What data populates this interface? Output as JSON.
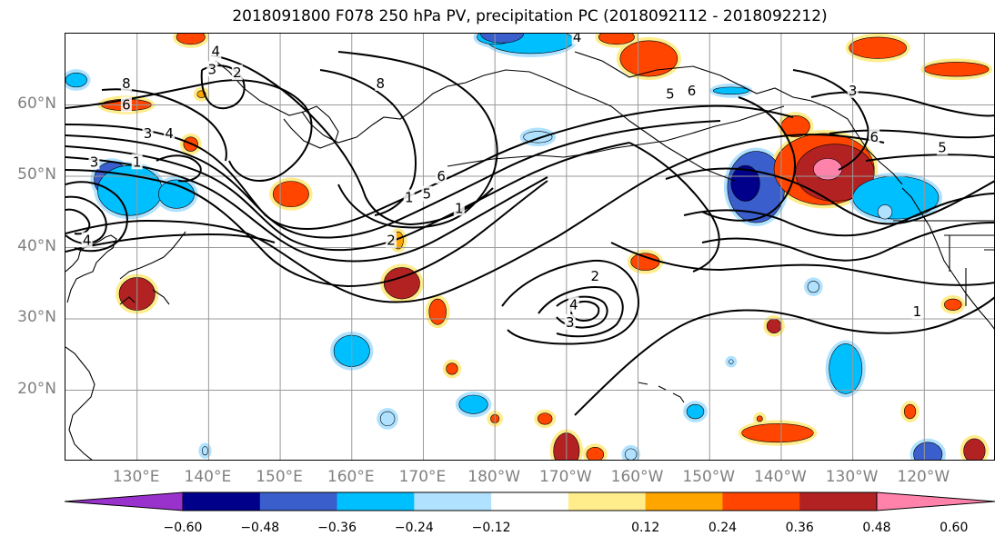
{
  "title": "2018091800 F078 250 hPa PV, precipitation PC (2018092112 - 2018092212)",
  "lat_labels": [
    "60°N",
    "50°N",
    "40°N",
    "30°N",
    "20°N"
  ],
  "lon_labels": [
    "130°E",
    "140°E",
    "150°E",
    "160°E",
    "170°E",
    "180°W",
    "170°W",
    "160°W",
    "150°W",
    "140°W",
    "130°W",
    "120°W"
  ],
  "colorbar": {
    "tick_labels": [
      "−0.60",
      "−0.48",
      "−0.36",
      "−0.24",
      "−0.12",
      "0.12",
      "0.24",
      "0.36",
      "0.48",
      "0.60"
    ],
    "colors": [
      "#9932cc",
      "#00008b",
      "#3a5fcd",
      "#00bfff",
      "#b0e2ff",
      "#ffffff",
      "#ffec8b",
      "#ffa500",
      "#ff4500",
      "#b22222",
      "#ff82ab"
    ]
  },
  "contour_labels": [
    {
      "text": "4",
      "lon": 141.0,
      "lat": 67.5
    },
    {
      "text": "3",
      "lon": 140.5,
      "lat": 65.0
    },
    {
      "text": "2",
      "lon": 144.0,
      "lat": 64.5
    },
    {
      "text": "8",
      "lon": 128.5,
      "lat": 63.0
    },
    {
      "text": "6",
      "lon": 128.5,
      "lat": 60.0
    },
    {
      "text": "3",
      "lon": 131.5,
      "lat": 56.0
    },
    {
      "text": "4",
      "lon": 134.5,
      "lat": 56.0
    },
    {
      "text": "3",
      "lon": 124.0,
      "lat": 52.0
    },
    {
      "text": "1",
      "lon": 130.0,
      "lat": 52.0
    },
    {
      "text": "4",
      "lon": 123.0,
      "lat": 41.0
    },
    {
      "text": "8",
      "lon": 164.0,
      "lat": 63.0
    },
    {
      "text": "6",
      "lon": 172.5,
      "lat": 50.0
    },
    {
      "text": "5",
      "lon": 170.5,
      "lat": 47.5
    },
    {
      "text": "1",
      "lon": 168.0,
      "lat": 47.0
    },
    {
      "text": "1",
      "lon": 175.0,
      "lat": 45.5
    },
    {
      "text": "2",
      "lon": 165.5,
      "lat": 41.0
    },
    {
      "text": "4",
      "lon": -168.5,
      "lat": 69.5
    },
    {
      "text": "2",
      "lon": -166.0,
      "lat": 36.0
    },
    {
      "text": "4",
      "lon": -169.0,
      "lat": 32.0
    },
    {
      "text": "3",
      "lon": -169.5,
      "lat": 29.5
    },
    {
      "text": "5",
      "lon": -155.5,
      "lat": 61.5
    },
    {
      "text": "6",
      "lon": -152.5,
      "lat": 62.0
    },
    {
      "text": "3",
      "lon": -130.0,
      "lat": 62.0
    },
    {
      "text": "6",
      "lon": -127.0,
      "lat": 55.5
    },
    {
      "text": "5",
      "lon": -117.5,
      "lat": 54.0
    },
    {
      "text": "1",
      "lon": -121.0,
      "lat": 31.0
    }
  ],
  "shading": [
    {
      "lon": 126.5,
      "lat": 49.5,
      "rx": 2.5,
      "ry": 2.5,
      "level": -0.48
    },
    {
      "lon": 129.0,
      "lat": 48.0,
      "rx": 4.5,
      "ry": 3.5,
      "level": -0.36
    },
    {
      "lon": 135.5,
      "lat": 47.5,
      "rx": 2.5,
      "ry": 2.0,
      "level": -0.36
    },
    {
      "lon": 121.5,
      "lat": 63.5,
      "rx": 1.5,
      "ry": 1.0,
      "level": -0.36
    },
    {
      "lon": 137.5,
      "lat": 69.5,
      "rx": 2.0,
      "ry": 1.0,
      "level": 0.36
    },
    {
      "lon": 128.5,
      "lat": 60.0,
      "rx": 3.5,
      "ry": 0.8,
      "level": 0.36
    },
    {
      "lon": 137.5,
      "lat": 54.5,
      "rx": 1.0,
      "ry": 1.0,
      "level": 0.36
    },
    {
      "lon": 151.5,
      "lat": 47.5,
      "rx": 2.5,
      "ry": 1.8,
      "level": 0.36
    },
    {
      "lon": 130.0,
      "lat": 33.5,
      "rx": 2.5,
      "ry": 2.3,
      "level": 0.48
    },
    {
      "lon": 185.0,
      "lat": 69.0,
      "rx": 6.0,
      "ry": 1.8,
      "level": -0.36
    },
    {
      "lon": 167.0,
      "lat": 35.0,
      "rx": 2.5,
      "ry": 2.2,
      "level": 0.48
    },
    {
      "lon": 166.5,
      "lat": 41.0,
      "rx": 0.7,
      "ry": 1.2,
      "level": 0.24
    },
    {
      "lon": 160.0,
      "lat": 25.5,
      "rx": 2.5,
      "ry": 2.2,
      "level": -0.36
    },
    {
      "lon": 172.0,
      "lat": 31.0,
      "rx": 1.2,
      "ry": 1.8,
      "level": 0.36
    },
    {
      "lon": 165.0,
      "lat": 16.0,
      "rx": 1.0,
      "ry": 1.0,
      "level": -0.24
    },
    {
      "lon": 174.0,
      "lat": 23.0,
      "rx": 0.8,
      "ry": 0.8,
      "level": 0.36
    },
    {
      "lon": 177.0,
      "lat": 18.0,
      "rx": 2.0,
      "ry": 1.3,
      "level": -0.36
    },
    {
      "lon": 180.0,
      "lat": 16.0,
      "rx": 0.6,
      "ry": 0.6,
      "level": 0.36
    },
    {
      "lon": 187.0,
      "lat": 16.0,
      "rx": 1.0,
      "ry": 0.8,
      "level": 0.36
    },
    {
      "lon": 180.0,
      "lat": 69.5,
      "rx": 2.5,
      "ry": 1.0,
      "level": -0.36
    },
    {
      "lon": 181.0,
      "lat": 70.0,
      "rx": 3.0,
      "ry": 1.3,
      "level": -0.48
    },
    {
      "lon": 186.0,
      "lat": 55.5,
      "rx": 2.0,
      "ry": 0.8,
      "level": -0.24
    },
    {
      "lon": 201.5,
      "lat": 66.5,
      "rx": 4.0,
      "ry": 2.5,
      "level": 0.36
    },
    {
      "lon": 197.0,
      "lat": 69.5,
      "rx": 2.5,
      "ry": 1.0,
      "level": 0.36
    },
    {
      "lon": 201.0,
      "lat": 38.0,
      "rx": 2.0,
      "ry": 1.2,
      "level": 0.36
    },
    {
      "lon": 190.0,
      "lat": 11.5,
      "rx": 1.8,
      "ry": 2.5,
      "level": 0.48
    },
    {
      "lon": 194.0,
      "lat": 11.0,
      "rx": 1.2,
      "ry": 1.0,
      "level": 0.36
    },
    {
      "lon": 199.0,
      "lat": 11.0,
      "rx": 0.8,
      "ry": 0.8,
      "level": -0.24
    },
    {
      "lon": 213.0,
      "lat": 24.0,
      "rx": 0.3,
      "ry": 0.3,
      "level": -0.24
    },
    {
      "lon": 208.0,
      "lat": 17.0,
      "rx": 1.2,
      "ry": 1.0,
      "level": -0.36
    },
    {
      "lon": 213.0,
      "lat": 62.0,
      "rx": 2.5,
      "ry": 0.5,
      "level": -0.36
    },
    {
      "lon": 216.5,
      "lat": 48.5,
      "rx": 4.0,
      "ry": 5.0,
      "level": -0.48
    },
    {
      "lon": 215.0,
      "lat": 49.0,
      "rx": 2.0,
      "ry": 2.5,
      "level": -0.6
    },
    {
      "lon": 222.0,
      "lat": 57.0,
      "rx": 2.0,
      "ry": 1.5,
      "level": 0.36
    },
    {
      "lon": 226.0,
      "lat": 51.0,
      "rx": 7.0,
      "ry": 5.0,
      "level": 0.36
    },
    {
      "lon": 227.5,
      "lat": 50.5,
      "rx": 5.5,
      "ry": 4.0,
      "level": 0.48
    },
    {
      "lon": 226.5,
      "lat": 51.0,
      "rx": 2.0,
      "ry": 1.5,
      "level": 0.6
    },
    {
      "lon": 219.5,
      "lat": 14.0,
      "rx": 5.0,
      "ry": 1.3,
      "level": 0.36
    },
    {
      "lon": 217.0,
      "lat": 16.0,
      "rx": 0.4,
      "ry": 0.4,
      "level": 0.36
    },
    {
      "lon": 219.0,
      "lat": 29.0,
      "rx": 1.0,
      "ry": 1.0,
      "level": 0.48
    },
    {
      "lon": 224.5,
      "lat": 34.5,
      "rx": 0.8,
      "ry": 0.8,
      "level": -0.24
    },
    {
      "lon": 229.0,
      "lat": 23.0,
      "rx": 2.3,
      "ry": 3.5,
      "level": -0.36
    },
    {
      "lon": 238.0,
      "lat": 17.0,
      "rx": 0.8,
      "ry": 1.0,
      "level": 0.36
    },
    {
      "lon": 233.5,
      "lat": 68.0,
      "rx": 4.0,
      "ry": 1.5,
      "level": 0.36
    },
    {
      "lon": 236.0,
      "lat": 47.0,
      "rx": 6.0,
      "ry": 3.0,
      "level": -0.36
    },
    {
      "lon": 234.5,
      "lat": 45.0,
      "rx": 1.0,
      "ry": 1.0,
      "level": -0.24
    },
    {
      "lon": 240.5,
      "lat": 11.0,
      "rx": 2.0,
      "ry": 1.7,
      "level": -0.48
    },
    {
      "lon": 247.0,
      "lat": 11.5,
      "rx": 1.5,
      "ry": 1.7,
      "level": 0.48
    },
    {
      "lon": 244.0,
      "lat": 32.0,
      "rx": 1.2,
      "ry": 0.8,
      "level": 0.36
    },
    {
      "lon": 244.5,
      "lat": 65.0,
      "rx": 4.5,
      "ry": 1.0,
      "level": 0.36
    },
    {
      "lon": 139.5,
      "lat": 11.5,
      "rx": 0.4,
      "ry": 0.6,
      "level": -0.24
    },
    {
      "lon": 139.0,
      "lat": 61.5,
      "rx": 0.6,
      "ry": 0.5,
      "level": 0.24
    }
  ]
}
